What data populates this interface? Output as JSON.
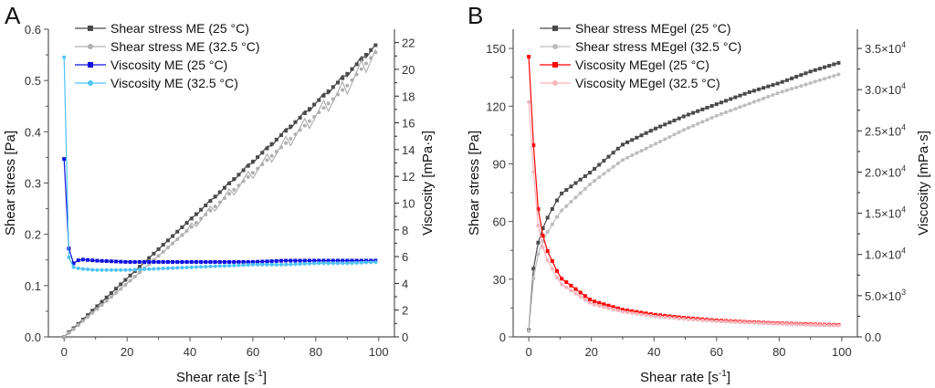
{
  "chart_data": [
    {
      "panel": "A",
      "type": "line",
      "title": "",
      "xlabel": "Shear rate [s-1]",
      "xlabel_main": "Shear rate [s",
      "xlabel_sup": "-1",
      "xlabel_end": "]",
      "ylabel": "Shear stress [Pa]",
      "y2label": "Viscosity [mPa·s]",
      "xlim": [
        -5,
        105
      ],
      "ylim": [
        0,
        0.6
      ],
      "y2lim": [
        0,
        23
      ],
      "xticks": [
        0,
        20,
        40,
        60,
        80,
        100
      ],
      "yticks": [
        "0.0",
        "0.1",
        "0.2",
        "0.3",
        "0.4",
        "0.5",
        "0.6"
      ],
      "y2ticks": [
        "0",
        "2",
        "4",
        "6",
        "8",
        "10",
        "12",
        "14",
        "16",
        "18",
        "20",
        "22"
      ],
      "legend_position": "top-left",
      "series": [
        {
          "name": "Shear stress ME (25 °C)",
          "axis": "left",
          "color": "#4a4a4a",
          "marker": "square",
          "x": [
            0,
            1,
            2,
            3,
            5,
            10,
            20,
            30,
            40,
            50,
            60,
            70,
            80,
            90,
            100
          ],
          "y": [
            0.0,
            0.006,
            0.012,
            0.017,
            0.028,
            0.057,
            0.114,
            0.171,
            0.228,
            0.285,
            0.342,
            0.399,
            0.456,
            0.513,
            0.575
          ]
        },
        {
          "name": "Shear stress ME (32.5 °C)",
          "axis": "left",
          "color": "#b0b0b0",
          "marker": "circle",
          "x": [
            0,
            1,
            2,
            3,
            5,
            10,
            20,
            30,
            40,
            50,
            60,
            70,
            80,
            90,
            100
          ],
          "y": [
            0.0,
            0.005,
            0.01,
            0.015,
            0.026,
            0.052,
            0.104,
            0.158,
            0.212,
            0.265,
            0.32,
            0.375,
            0.432,
            0.49,
            0.562
          ]
        },
        {
          "name": "Viscosity ME (25 °C)",
          "axis": "right",
          "color": "#1010e0",
          "marker": "square",
          "x": [
            0,
            1,
            2,
            3,
            5,
            10,
            20,
            30,
            40,
            50,
            60,
            70,
            80,
            90,
            100
          ],
          "y": [
            13.3,
            6.9,
            6.3,
            5.5,
            5.8,
            5.7,
            5.6,
            5.6,
            5.6,
            5.6,
            5.6,
            5.7,
            5.7,
            5.7,
            5.7
          ]
        },
        {
          "name": "Viscosity ME (32.5 °C)",
          "axis": "right",
          "color": "#4fc3f7",
          "marker": "circle",
          "x": [
            0,
            1,
            2,
            3,
            5,
            10,
            20,
            30,
            40,
            50,
            60,
            70,
            80,
            90,
            100
          ],
          "y": [
            20.9,
            6.3,
            5.6,
            5.2,
            5.1,
            5.0,
            5.0,
            5.1,
            5.2,
            5.3,
            5.4,
            5.4,
            5.5,
            5.5,
            5.6
          ]
        }
      ]
    },
    {
      "panel": "B",
      "type": "line",
      "title": "",
      "xlabel": "Shear rate [s-1]",
      "xlabel_main": "Shear rate [s",
      "xlabel_sup": "-1",
      "xlabel_end": "]",
      "ylabel": "Shear stress [Pa]",
      "y2label": "Viscosity [mPa·s]",
      "xlim": [
        -5,
        105
      ],
      "ylim": [
        0,
        160
      ],
      "y2lim": [
        0,
        37333
      ],
      "xticks": [
        0,
        20,
        40,
        60,
        80,
        100
      ],
      "yticks": [
        "0",
        "30",
        "60",
        "90",
        "120",
        "150"
      ],
      "y2ticks": [
        {
          "value": 0,
          "mant": "0.0",
          "exp": ""
        },
        {
          "value": 5000,
          "mant": "5.0×10",
          "exp": "3"
        },
        {
          "value": 10000,
          "mant": "1.0×10",
          "exp": "4"
        },
        {
          "value": 15000,
          "mant": "1.5×10",
          "exp": "4"
        },
        {
          "value": 20000,
          "mant": "2.0×10",
          "exp": "4"
        },
        {
          "value": 25000,
          "mant": "2.5×10",
          "exp": "4"
        },
        {
          "value": 30000,
          "mant": "3.0×10",
          "exp": "4"
        },
        {
          "value": 35000,
          "mant": "3.5×10",
          "exp": "4"
        }
      ],
      "legend_position": "top-left",
      "series": [
        {
          "name": "Shear stress MEgel (25 °C)",
          "axis": "left",
          "color": "#4a4a4a",
          "marker": "square",
          "x": [
            0,
            1,
            2,
            3,
            5,
            10,
            20,
            30,
            40,
            50,
            60,
            70,
            80,
            90,
            100
          ],
          "y": [
            3.5,
            30,
            41,
            49,
            59,
            74,
            86,
            100,
            108,
            115,
            121,
            127,
            132,
            138,
            143
          ]
        },
        {
          "name": "Shear stress MEgel (32.5 °C)",
          "axis": "left",
          "color": "#bdbdbd",
          "marker": "circle",
          "x": [
            0,
            1,
            2,
            3,
            5,
            10,
            20,
            30,
            40,
            50,
            60,
            70,
            80,
            90,
            100
          ],
          "y": [
            3.0,
            26,
            35,
            43,
            52,
            65,
            80,
            92,
            100,
            108,
            115,
            121,
            127,
            132,
            137
          ]
        },
        {
          "name": "Viscosity MEgel (25 °C)",
          "axis": "right",
          "color": "#ff0000",
          "marker": "square",
          "x": [
            0,
            1,
            2,
            3,
            5,
            10,
            20,
            30,
            40,
            50,
            60,
            70,
            80,
            90,
            100
          ],
          "y": [
            34000,
            27000,
            19500,
            15500,
            11200,
            7200,
            4400,
            3300,
            2700,
            2300,
            2000,
            1800,
            1650,
            1530,
            1430
          ]
        },
        {
          "name": "Viscosity MEgel (32.5 °C)",
          "axis": "right",
          "color": "#f4b6bc",
          "marker": "circle",
          "x": [
            0,
            1,
            2,
            3,
            5,
            10,
            20,
            30,
            40,
            50,
            60,
            70,
            80,
            90,
            100
          ],
          "y": [
            28500,
            23000,
            17000,
            13500,
            10000,
            6500,
            4000,
            3050,
            2500,
            2150,
            1900,
            1730,
            1590,
            1470,
            1370
          ]
        }
      ]
    }
  ]
}
